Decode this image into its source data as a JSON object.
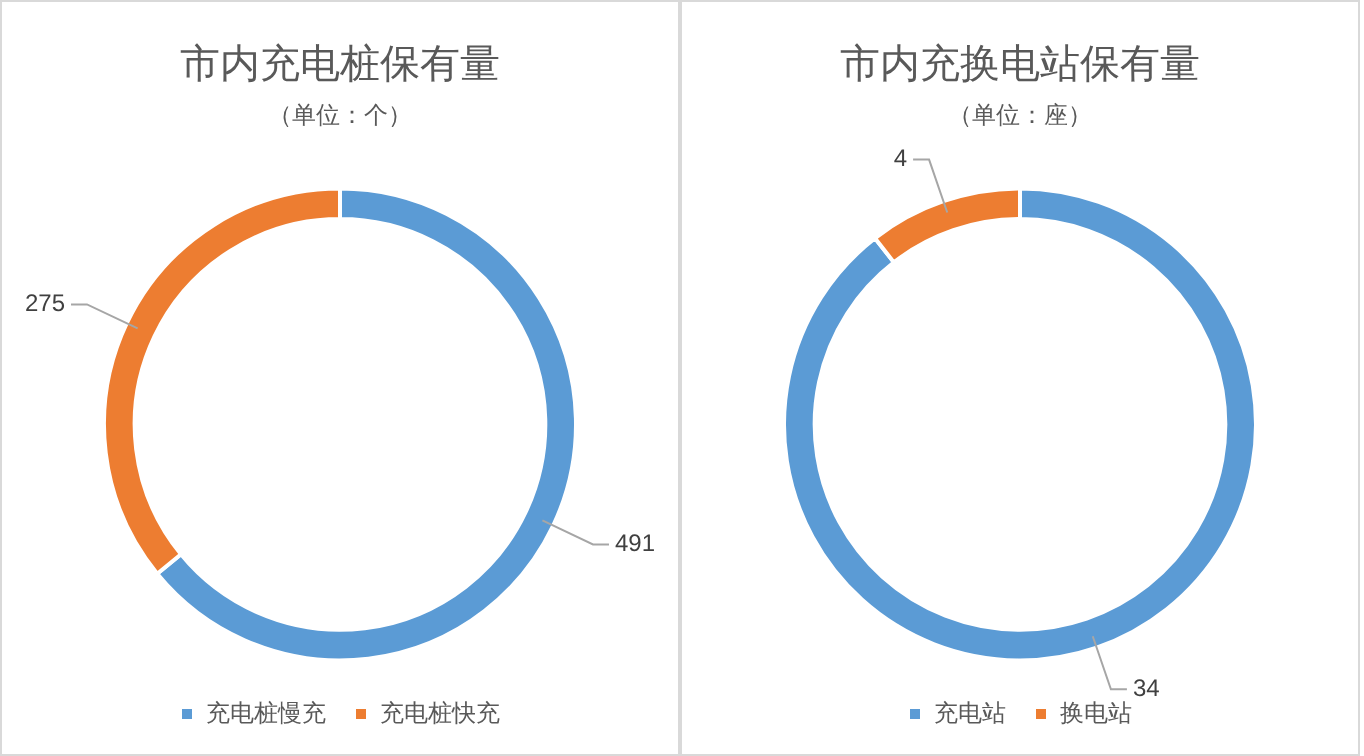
{
  "chart_data": [
    {
      "type": "donut",
      "title": "市内充电桩保有量",
      "subtitle": "（单位：个）",
      "categories": [
        "充电桩慢充",
        "充电桩快充"
      ],
      "values": [
        491,
        275
      ],
      "colors": [
        "#5b9bd5",
        "#ed7d31"
      ],
      "data_labels": true,
      "legend": "bottom"
    },
    {
      "type": "donut",
      "title": "市内充换电站保有量",
      "subtitle": "（单位：座）",
      "categories": [
        "充电站",
        "换电站"
      ],
      "values": [
        34,
        4
      ],
      "colors": [
        "#5b9bd5",
        "#ed7d31"
      ],
      "data_labels": true,
      "legend": "bottom"
    }
  ]
}
